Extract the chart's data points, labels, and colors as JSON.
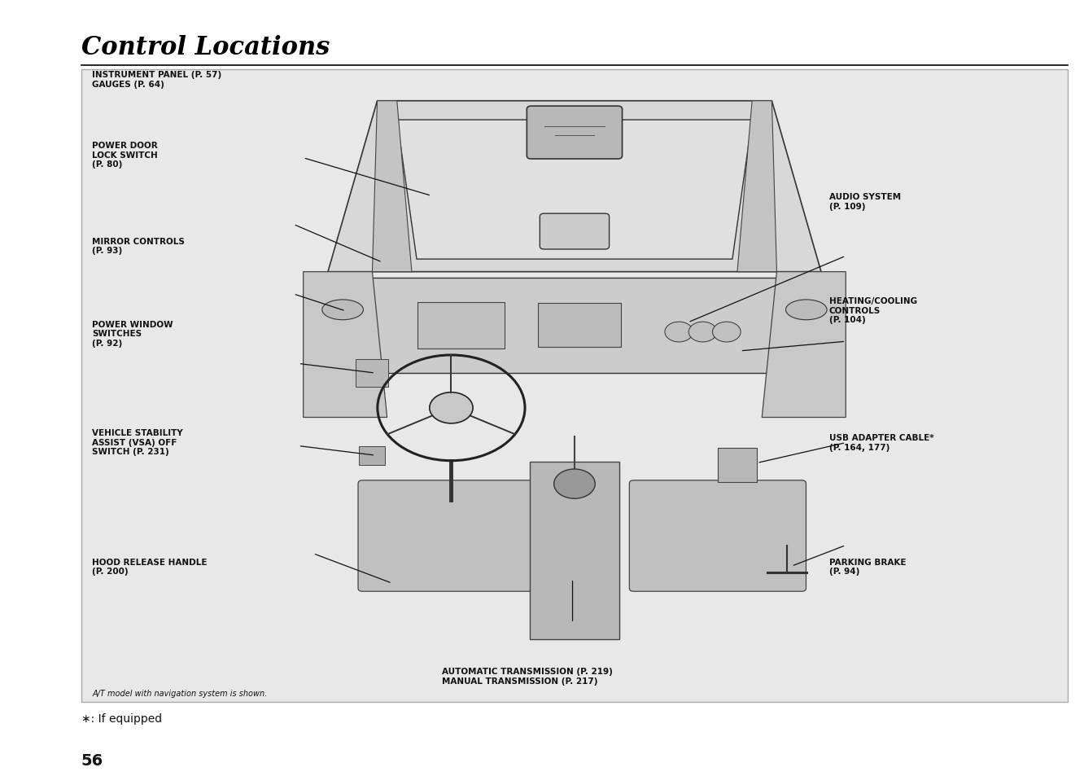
{
  "title": "Control Locations",
  "page_number": "56",
  "background_color": "#ffffff",
  "box_bg_color": "#e8e8e8",
  "title_fontsize": 22,
  "body_fontsize": 9,
  "footnote": "∗: If equipped",
  "caption": "A/T model with navigation system is shown.",
  "lbl_fs": 7.5,
  "line_color": "#111111",
  "line_width": 0.8
}
